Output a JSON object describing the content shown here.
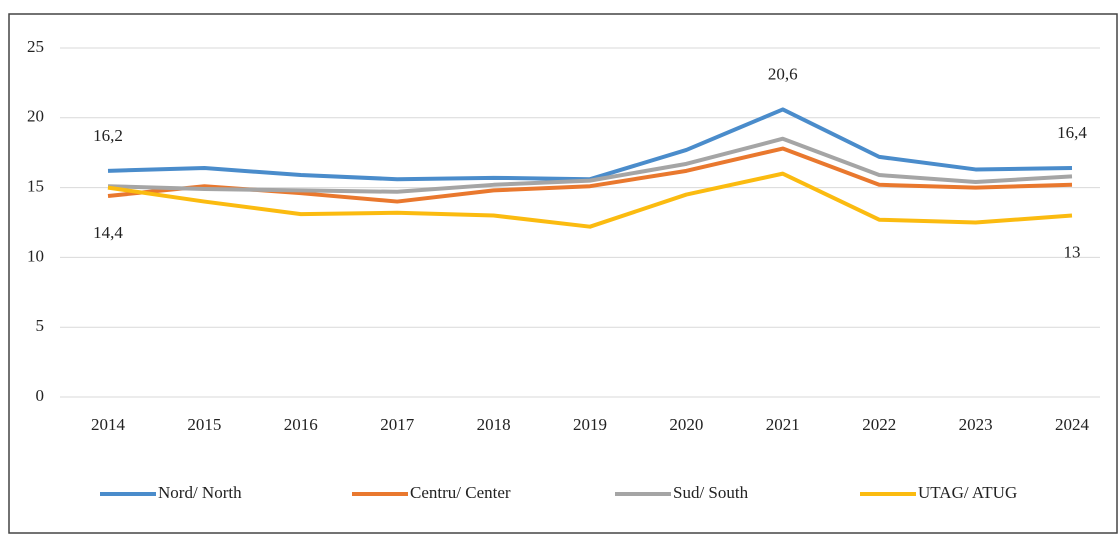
{
  "chart_data": {
    "type": "line",
    "categories": [
      "2014",
      "2015",
      "2016",
      "2017",
      "2018",
      "2019",
      "2020",
      "2021",
      "2022",
      "2023",
      "2024"
    ],
    "series": [
      {
        "name": "Nord/ North",
        "color": "#4a8ccb",
        "values": [
          16.2,
          16.4,
          15.9,
          15.6,
          15.7,
          15.6,
          17.7,
          20.6,
          17.2,
          16.3,
          16.4
        ],
        "value_labels": [
          "16,2",
          null,
          null,
          null,
          null,
          null,
          null,
          "20,6",
          null,
          null,
          "16,4"
        ]
      },
      {
        "name": "Centru/ Center",
        "color": "#e9782e",
        "values": [
          14.4,
          15.1,
          14.6,
          14.0,
          14.8,
          15.1,
          16.2,
          17.8,
          15.2,
          15.0,
          15.2
        ],
        "value_labels": [
          "14,4",
          null,
          null,
          null,
          null,
          null,
          null,
          null,
          null,
          null,
          null
        ]
      },
      {
        "name": "Sud/ South",
        "color": "#a5a5a5",
        "values": [
          15.1,
          14.9,
          14.8,
          14.7,
          15.2,
          15.5,
          16.7,
          18.5,
          15.9,
          15.4,
          15.8
        ]
      },
      {
        "name": "UTAG/ ATUG",
        "color": "#fbbb10",
        "values": [
          15.0,
          14.0,
          13.1,
          13.2,
          13.0,
          12.2,
          14.5,
          16.0,
          12.7,
          12.5,
          13.0
        ],
        "value_labels": [
          null,
          null,
          null,
          null,
          null,
          null,
          null,
          null,
          null,
          null,
          "13"
        ]
      }
    ],
    "ylim": [
      0,
      25
    ],
    "yticks": [
      0,
      5,
      10,
      15,
      20,
      25
    ],
    "grid": true,
    "legend": "bottom"
  }
}
